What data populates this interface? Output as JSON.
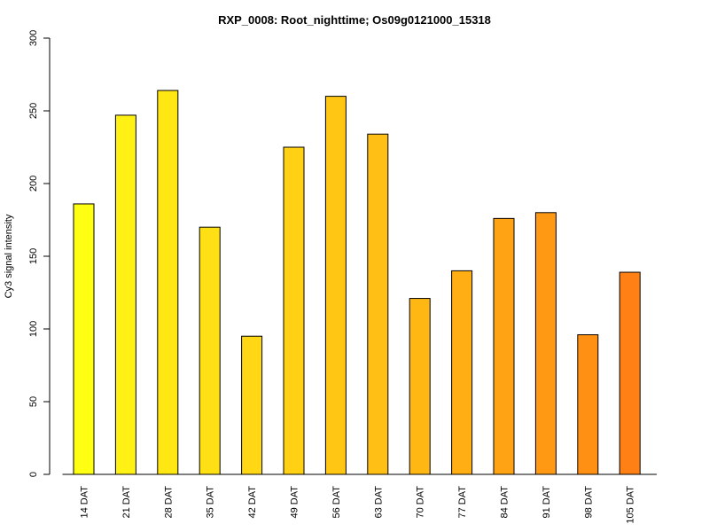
{
  "chart_data": {
    "type": "bar",
    "title": "RXP_0008: Root_nighttime; Os09g0121000_15318",
    "xlabel": "",
    "ylabel": "Cy3 signal intensity",
    "ylim": [
      0,
      300
    ],
    "yticks": [
      0,
      50,
      100,
      150,
      200,
      250,
      300
    ],
    "categories": [
      "14 DAT",
      "21 DAT",
      "28 DAT",
      "35 DAT",
      "42 DAT",
      "49 DAT",
      "56 DAT",
      "63 DAT",
      "70 DAT",
      "77 DAT",
      "84 DAT",
      "91 DAT",
      "98 DAT",
      "105 DAT"
    ],
    "values": [
      186,
      247,
      264,
      170,
      95,
      225,
      260,
      234,
      121,
      140,
      176,
      180,
      96,
      139
    ],
    "colors": [
      "#FFFF14",
      "#FFF114",
      "#FFE714",
      "#FFE014",
      "#FFD714",
      "#FFD014",
      "#FFC714",
      "#FFBF14",
      "#FFB714",
      "#FFAE14",
      "#FFA314",
      "#FF9914",
      "#FF9014",
      "#FF8014"
    ],
    "grid": false,
    "legend": "none"
  }
}
